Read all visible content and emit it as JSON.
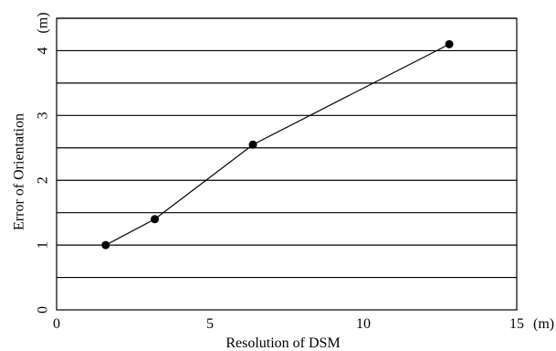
{
  "chart_data": {
    "type": "line",
    "title": "",
    "xlabel": "Resolution of DSM",
    "ylabel": "Error of Orientation",
    "x_unit": "(m)",
    "y_unit": "(m)",
    "xlim": [
      0,
      15
    ],
    "ylim": [
      0,
      4.5
    ],
    "x_ticks": [
      0,
      5,
      10,
      15
    ],
    "y_ticks": [
      0,
      1,
      2,
      3,
      4
    ],
    "grid_y": [
      0.5,
      1,
      1.5,
      2,
      2.5,
      3,
      3.5,
      4,
      4.5
    ],
    "grid": "horizontal",
    "series": [
      {
        "x": [
          1.6,
          3.2,
          6.4,
          12.8
        ],
        "y": [
          1.0,
          1.4,
          2.55,
          4.1
        ]
      }
    ],
    "colors": {
      "line": "#000000",
      "marker": "#000000",
      "grid": "#000000"
    }
  }
}
